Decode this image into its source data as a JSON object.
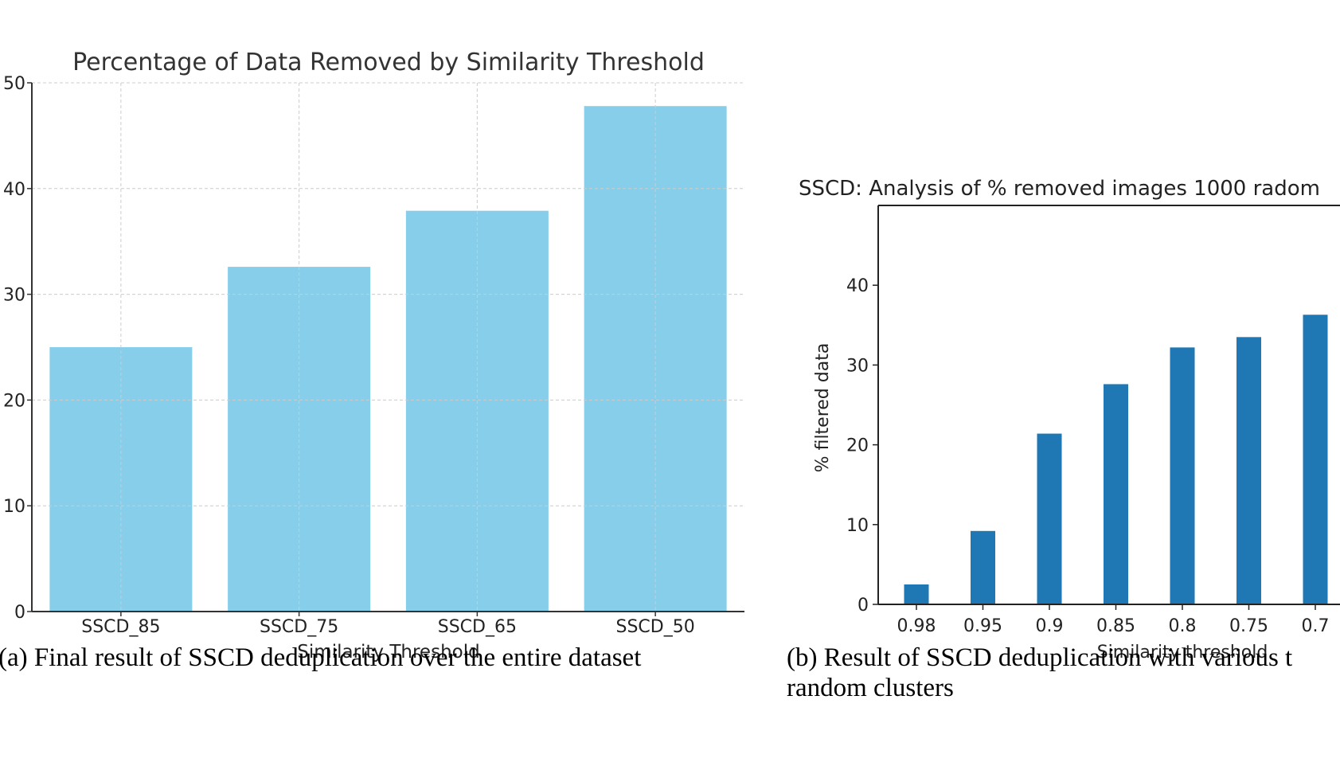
{
  "chart_data": [
    {
      "type": "bar",
      "title": "Percentage of Data Removed by Similarity Threshold",
      "xlabel": "Similarity Threshold",
      "ylabel": "",
      "categories": [
        "SSCD_85",
        "SSCD_75",
        "SSCD_65",
        "SSCD_50"
      ],
      "values": [
        25.0,
        32.6,
        37.9,
        47.8
      ],
      "ylim": [
        0,
        50
      ],
      "yticks": [
        0,
        10,
        20,
        30,
        40,
        50
      ],
      "grid": true,
      "color": "#87ceeb"
    },
    {
      "type": "bar",
      "title": "SSCD: Analysis of % removed images 1000 radom",
      "xlabel": "Similarity threshold",
      "ylabel": "% filtered data",
      "categories": [
        "0.98",
        "0.95",
        "0.9",
        "0.85",
        "0.8",
        "0.75",
        "0.7"
      ],
      "values": [
        2.5,
        9.2,
        21.4,
        27.6,
        32.2,
        33.5,
        36.3
      ],
      "ylim": [
        0,
        50
      ],
      "yticks": [
        0,
        10,
        20,
        30,
        40
      ],
      "grid": false,
      "color": "#1f77b4"
    }
  ],
  "captions": {
    "a": "(a) Final result of SSCD deduplication over the entire dataset",
    "b_line1": "(b) Result of SSCD deduplication with various t",
    "b_line2": "random clusters"
  }
}
